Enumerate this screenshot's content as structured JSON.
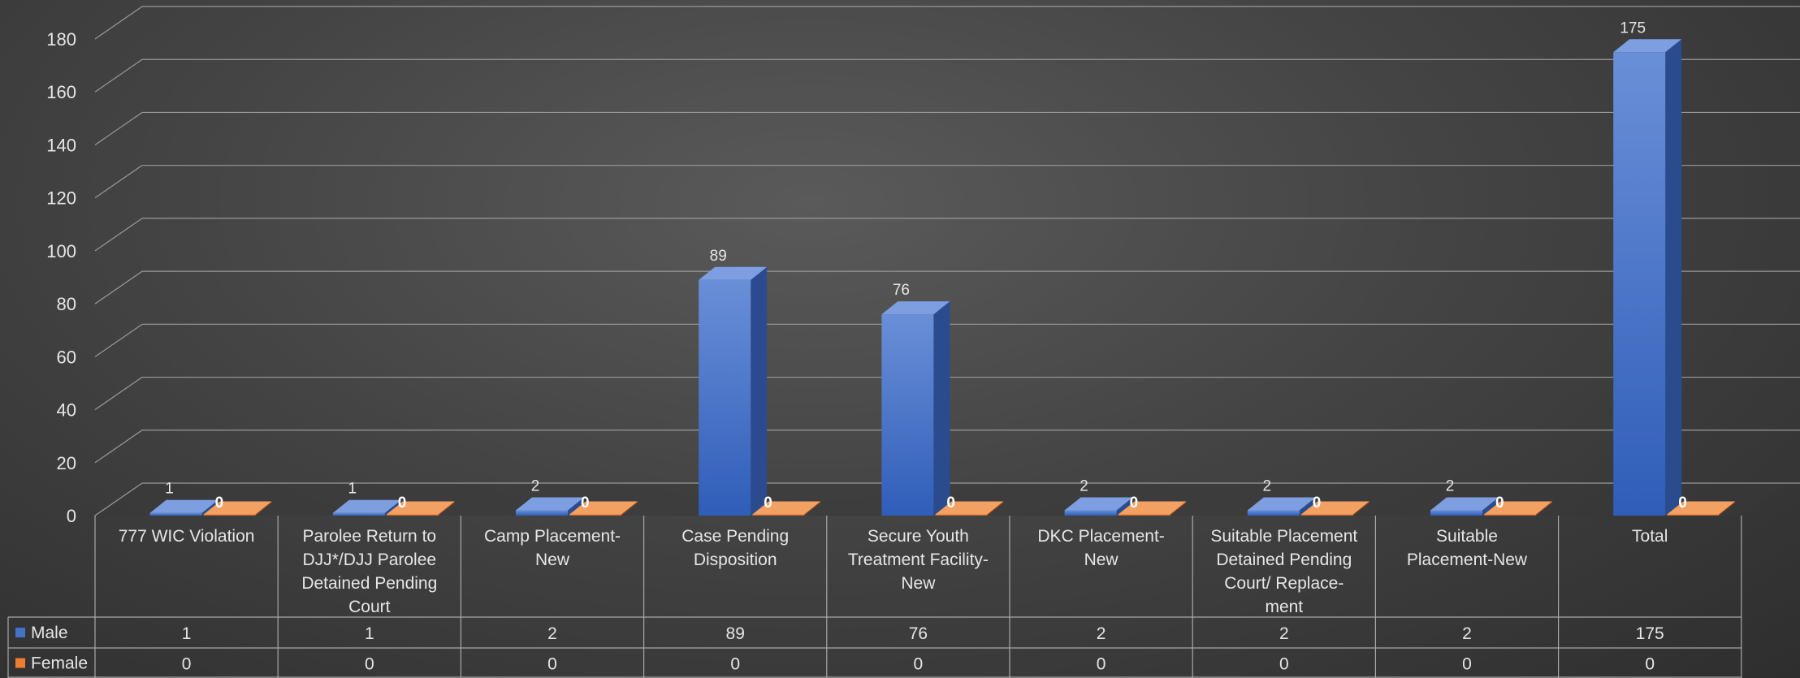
{
  "chart_data": {
    "type": "bar",
    "categories": [
      [
        "777 WIC Violation"
      ],
      [
        "Parolee Return to",
        "DJJ*/DJJ Parolee",
        "Detained Pending",
        "Court"
      ],
      [
        "Camp Placement-",
        "New"
      ],
      [
        "Case Pending",
        "Disposition"
      ],
      [
        "Secure Youth",
        "Treatment Facility-",
        "New"
      ],
      [
        "DKC Placement-",
        "New"
      ],
      [
        "Suitable Placement",
        "Detained Pending",
        "Court/     Replace-",
        "ment"
      ],
      [
        "Suitable",
        "Placement-New"
      ],
      [
        "Total"
      ]
    ],
    "series": [
      {
        "name": "Male",
        "values": [
          1,
          1,
          2,
          89,
          76,
          2,
          2,
          2,
          175
        ]
      },
      {
        "name": "Female",
        "values": [
          0,
          0,
          0,
          0,
          0,
          0,
          0,
          0,
          0
        ]
      }
    ],
    "ylim": [
      0,
      180
    ],
    "yticks": [
      0,
      20,
      40,
      60,
      80,
      100,
      120,
      140,
      160,
      180
    ],
    "grid": true,
    "data_table": true,
    "colors": {
      "Male": "#4472C4",
      "Female": "#ED7D31"
    }
  }
}
